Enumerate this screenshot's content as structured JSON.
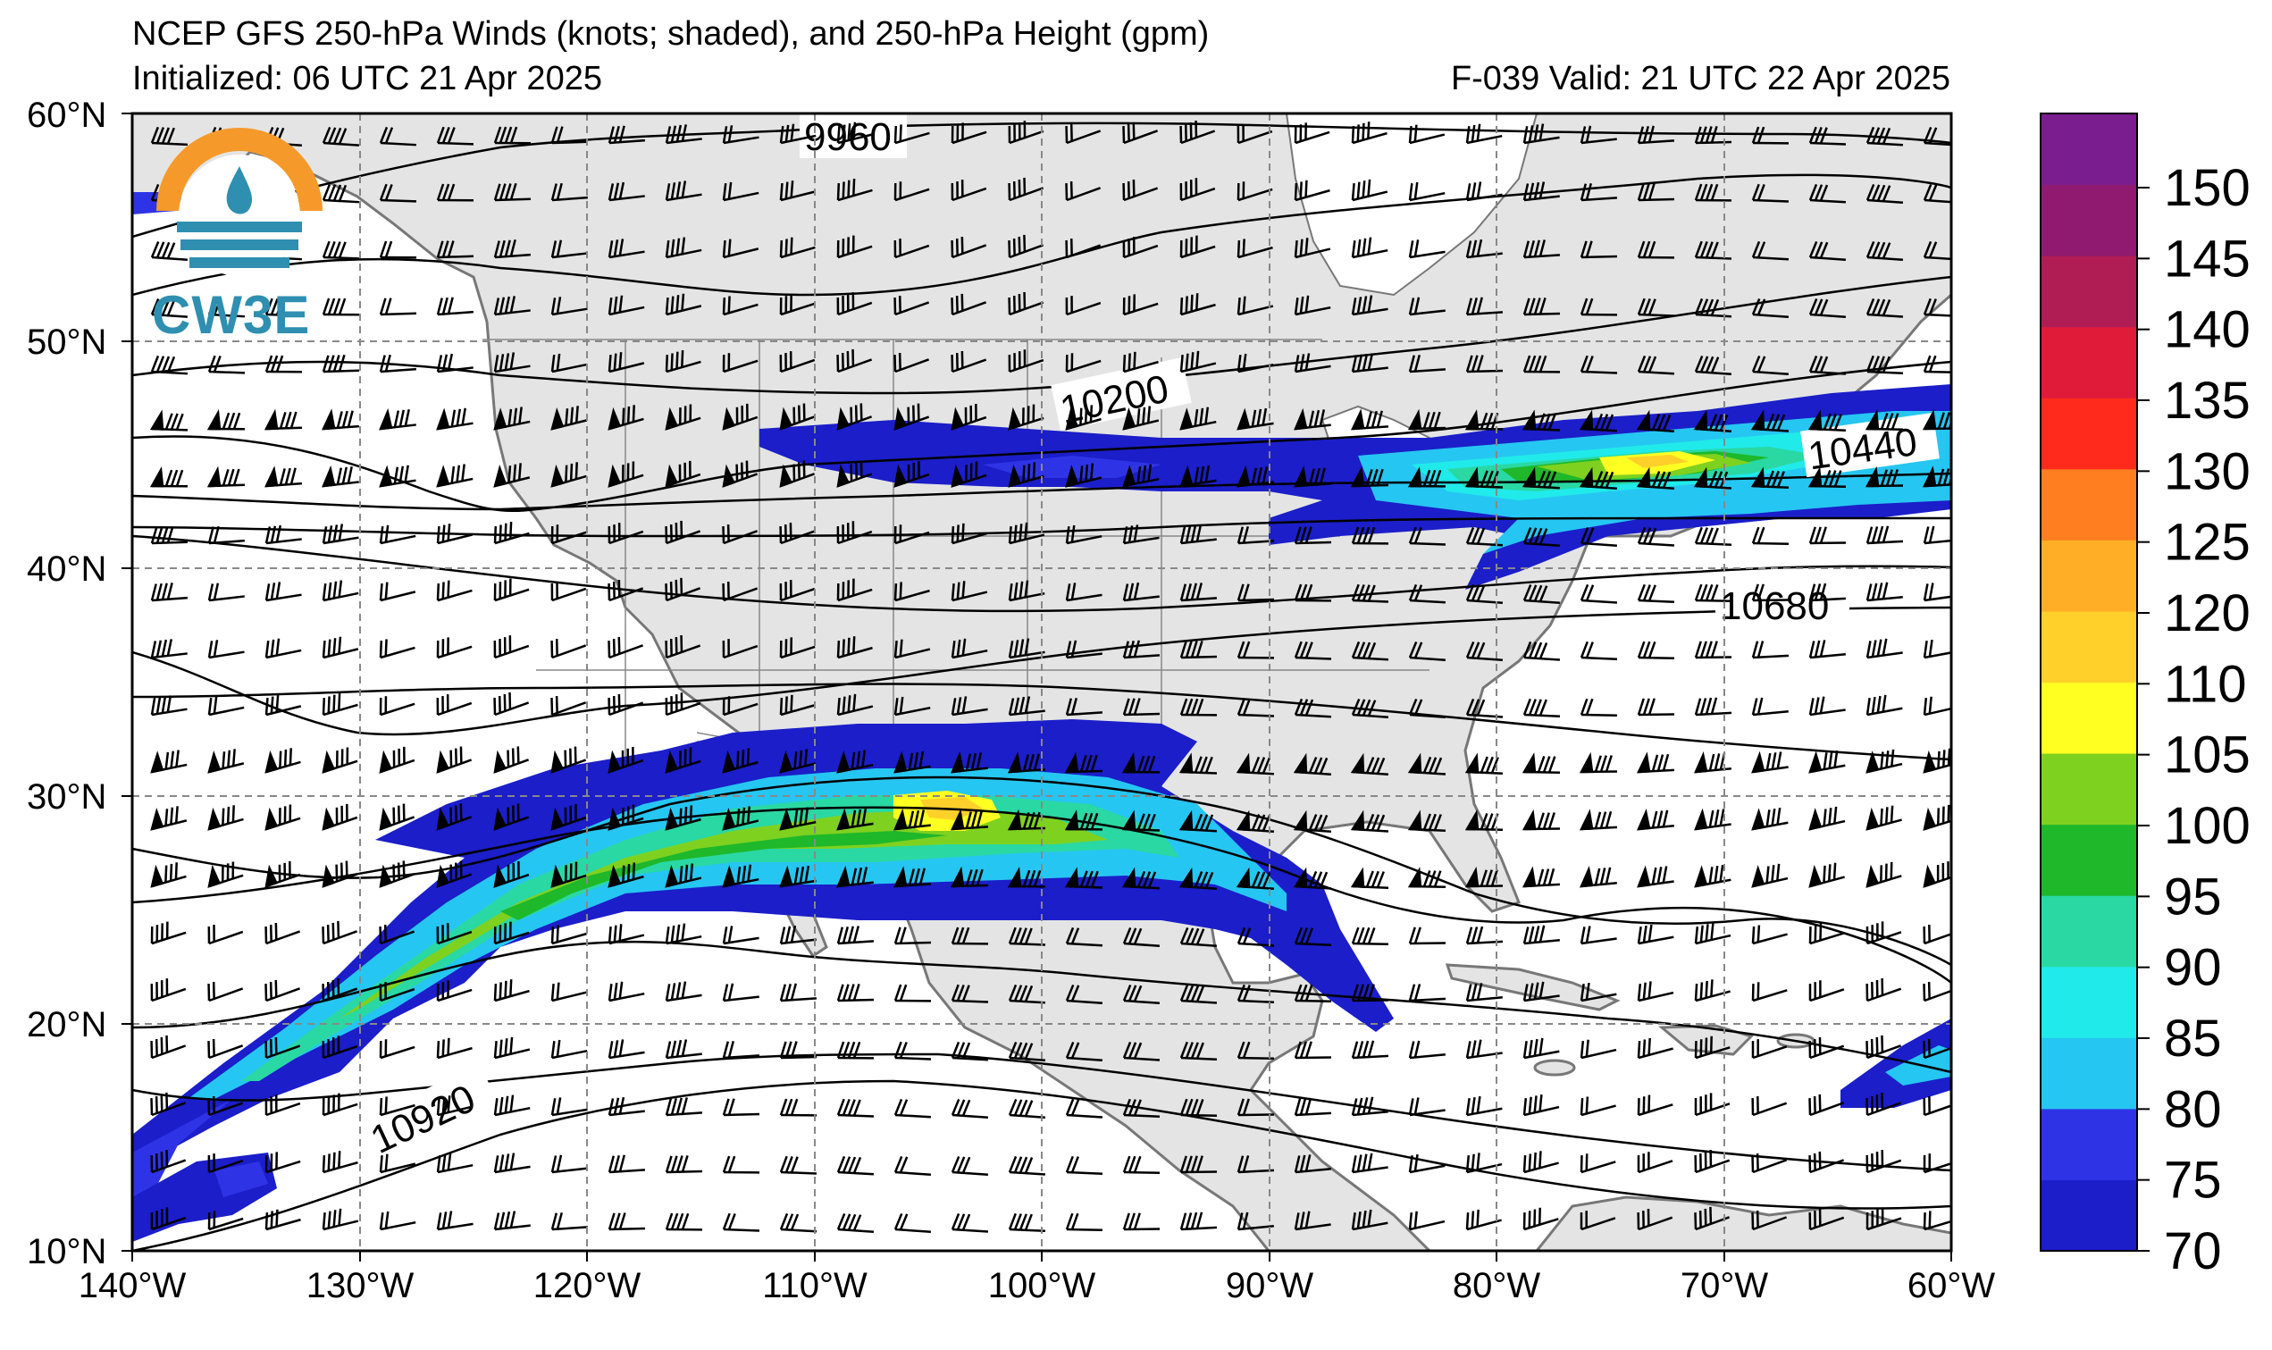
{
  "header": {
    "title": "NCEP GFS 250-hPa Winds (knots; shaded), and 250-hPa Height (gpm)",
    "initialized": "Initialized: 06 UTC 21 Apr 2025",
    "valid": "F-039  Valid: 21 UTC 22 Apr 2025"
  },
  "logo": {
    "text": "CW3E"
  },
  "map": {
    "lat_ticks": [
      "60°N",
      "50°N",
      "40°N",
      "30°N",
      "20°N",
      "10°N"
    ],
    "lon_ticks": [
      "140°W",
      "130°W",
      "120°W",
      "110°W",
      "100°W",
      "90°W",
      "80°W",
      "70°W",
      "60°W"
    ],
    "lat_range": [
      10,
      60
    ],
    "lon_range": [
      -140,
      -60
    ],
    "grid": true,
    "land_color": "#e4e4e4",
    "contour_labels": [
      "9960",
      "10200",
      "10440",
      "10680",
      "10920"
    ]
  },
  "colorbar": {
    "labels": [
      "150",
      "145",
      "140",
      "135",
      "130",
      "125",
      "120",
      "110",
      "105",
      "100",
      "95",
      "90",
      "85",
      "80",
      "75",
      "70"
    ],
    "colors": [
      "#1b1ec9",
      "#2e34e6",
      "#26c6f2",
      "#20eaea",
      "#2ad8a4",
      "#1eb82a",
      "#7fd11f",
      "#ffff22",
      "#ffd02a",
      "#ffae25",
      "#ff7f20",
      "#ff2a1c",
      "#e01b3a",
      "#b01d55",
      "#901a70",
      "#7a1d8f"
    ]
  }
}
